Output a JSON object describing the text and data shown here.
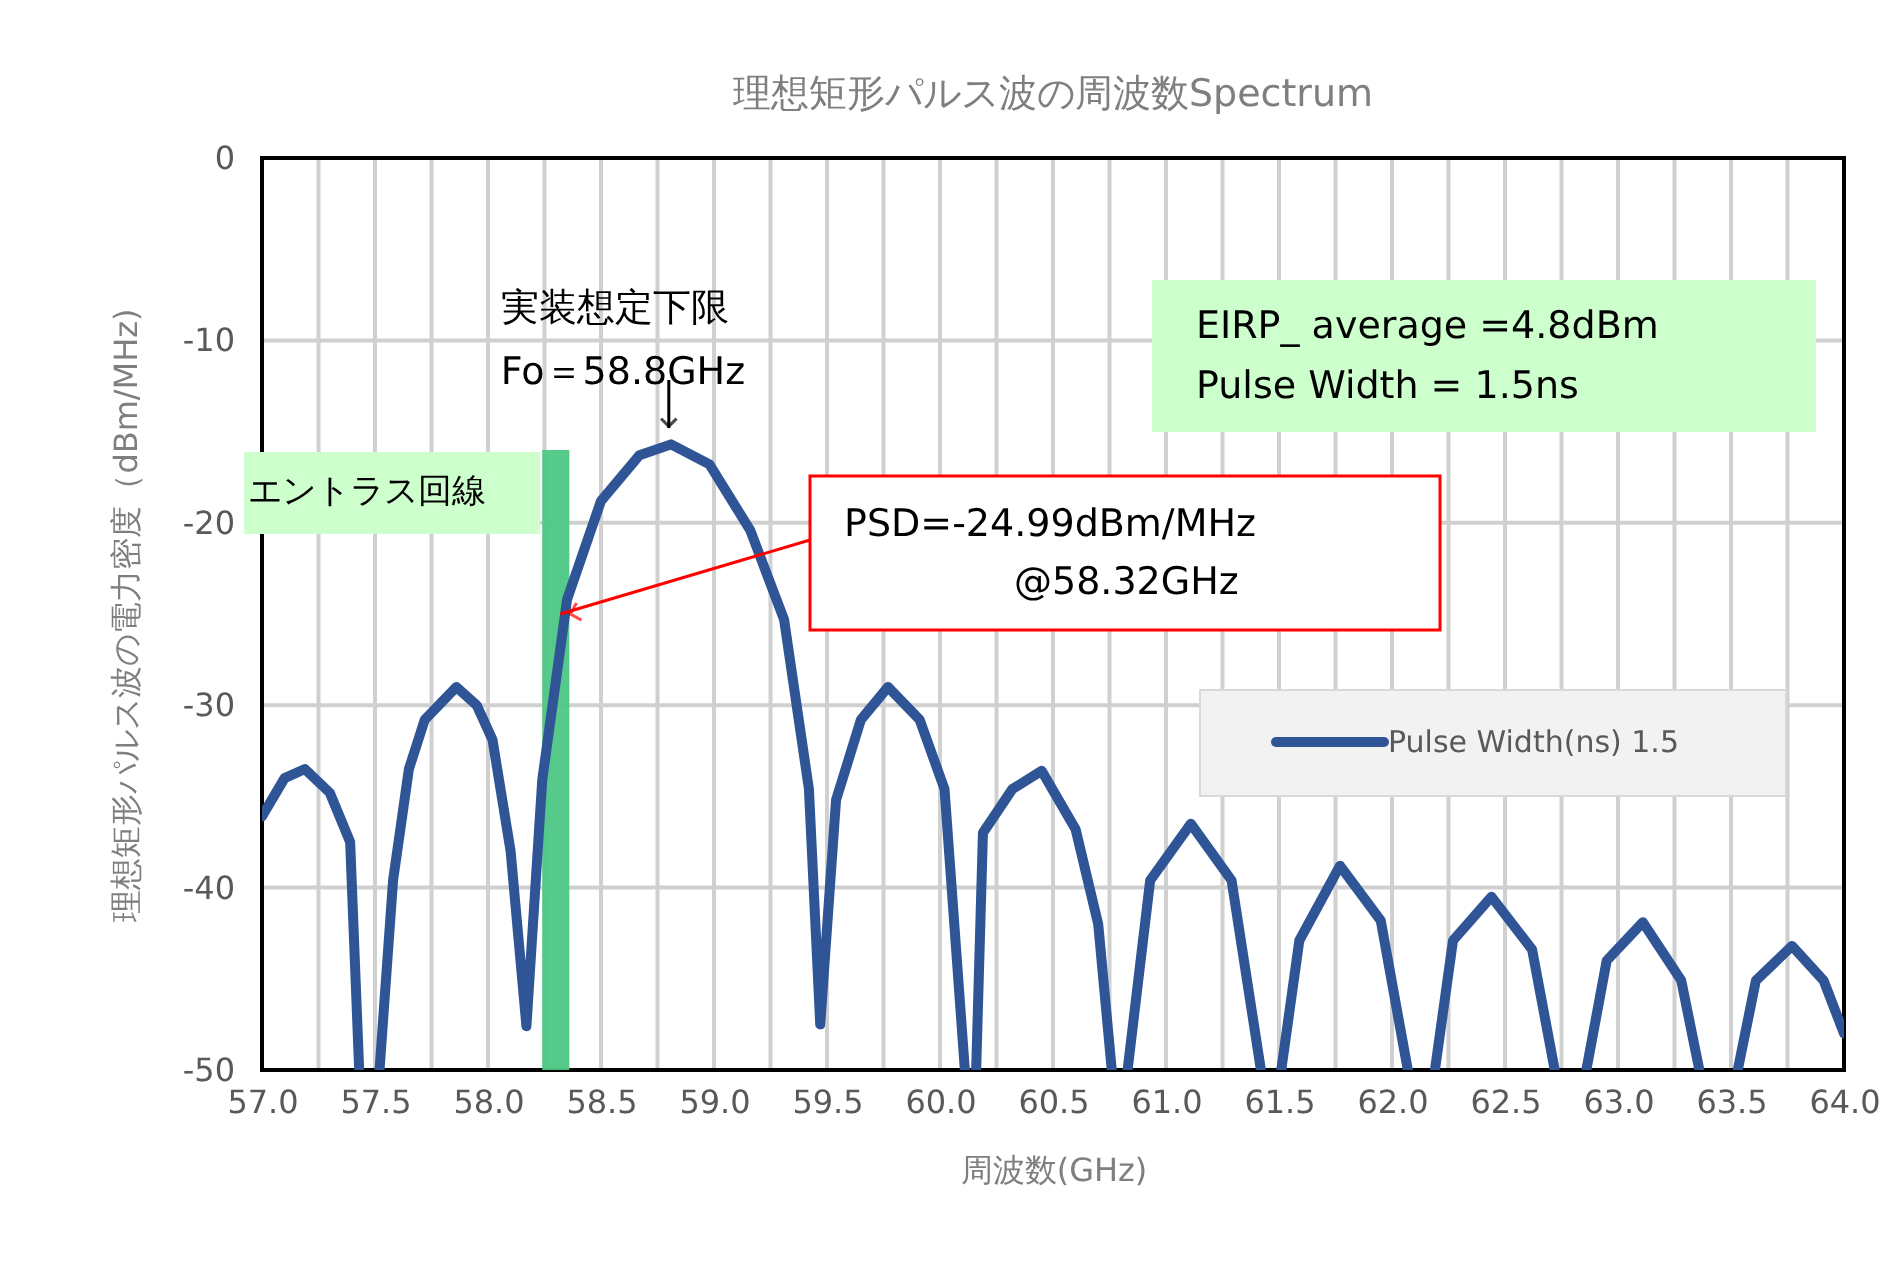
{
  "chart_data": {
    "type": "line",
    "title": "理想矩形パルス波の周波数Spectrum",
    "xlabel": "周波数(GHz)",
    "ylabel": "理想矩形パルス波の電力密度（dBm/MHz)",
    "series": [
      {
        "name": "Pulse Width(ns) 1.5",
        "color": "#2f5597",
        "x": [
          57.0,
          57.1,
          57.19,
          57.3,
          57.39,
          57.43,
          57.48,
          57.52,
          57.58,
          57.65,
          57.72,
          57.86,
          57.95,
          58.02,
          58.1,
          58.17,
          58.24,
          58.35,
          58.5,
          58.67,
          58.81,
          58.98,
          59.16,
          59.31,
          59.42,
          59.47,
          59.54,
          59.65,
          59.77,
          59.91,
          60.02,
          60.11,
          60.14,
          60.16,
          60.19,
          60.32,
          60.45,
          60.6,
          60.7,
          60.76,
          60.8,
          60.83,
          60.93,
          61.11,
          61.29,
          61.42,
          61.46,
          61.51,
          61.59,
          61.77,
          61.95,
          62.07,
          62.13,
          62.19,
          62.27,
          62.44,
          62.62,
          62.72,
          62.8,
          62.86,
          62.95,
          63.11,
          63.28,
          63.36,
          63.45,
          63.53,
          63.61,
          63.77,
          63.91,
          64.0
        ],
        "values": [
          -36.1,
          -34.0,
          -33.5,
          -34.8,
          -37.5,
          -50,
          null,
          -50,
          -39.6,
          -33.5,
          -30.8,
          -29.0,
          -30.0,
          -31.9,
          -38.0,
          -47.6,
          -34.1,
          -24.2,
          -18.8,
          -16.3,
          -15.7,
          -16.8,
          -20.4,
          -25.3,
          -34.6,
          -47.5,
          -35.2,
          -30.8,
          -29.0,
          -30.8,
          -34.6,
          -50,
          null,
          -50,
          -37.0,
          -34.6,
          -33.6,
          -36.8,
          -42.0,
          -50,
          null,
          -50,
          -39.6,
          -36.5,
          -39.6,
          -50,
          null,
          -50,
          -42.9,
          -38.8,
          -41.8,
          -50,
          null,
          -50,
          -42.9,
          -40.5,
          -43.4,
          -50,
          null,
          -50,
          -44.0,
          -41.9,
          -45.1,
          -50,
          null,
          -50,
          -45.1,
          -43.2,
          -45.1,
          -48.0
        ]
      }
    ],
    "xlim": [
      57,
      64
    ],
    "xticks": [
      {
        "value": 57,
        "label": "57.0"
      },
      {
        "value": 57.25,
        "label": null
      },
      {
        "value": 57.5,
        "label": "57.5"
      },
      {
        "value": 57.75,
        "label": null
      },
      {
        "value": 58,
        "label": "58.0"
      },
      {
        "value": 58.25,
        "label": null
      },
      {
        "value": 58.5,
        "label": "58.5"
      },
      {
        "value": 58.75,
        "label": null
      },
      {
        "value": 59,
        "label": "59.0"
      },
      {
        "value": 59.25,
        "label": null
      },
      {
        "value": 59.5,
        "label": "59.5"
      },
      {
        "value": 59.75,
        "label": null
      },
      {
        "value": 60,
        "label": "60.0"
      },
      {
        "value": 60.25,
        "label": null
      },
      {
        "value": 60.5,
        "label": "60.5"
      },
      {
        "value": 60.75,
        "label": null
      },
      {
        "value": 61,
        "label": "61.0"
      },
      {
        "value": 61.25,
        "label": null
      },
      {
        "value": 61.5,
        "label": "61.5"
      },
      {
        "value": 61.75,
        "label": null
      },
      {
        "value": 62,
        "label": "62.0"
      },
      {
        "value": 62.25,
        "label": null
      },
      {
        "value": 62.5,
        "label": "62.5"
      },
      {
        "value": 62.75,
        "label": null
      },
      {
        "value": 63,
        "label": "63.0"
      },
      {
        "value": 63.25,
        "label": null
      },
      {
        "value": 63.5,
        "label": "63.5"
      },
      {
        "value": 63.75,
        "label": null
      },
      {
        "value": 64,
        "label": "64.0"
      }
    ],
    "ylim": [
      -50,
      0
    ],
    "yticks": [
      -50,
      -40,
      -30,
      -20,
      -10,
      0
    ],
    "bands": [
      {
        "axis": "x",
        "from": 58.24,
        "to": 58.36,
        "label": "エントラス回線",
        "color": "#4cc784"
      }
    ],
    "annotations": [
      {
        "text": "実装想定下限\nFo＝58.8GHz",
        "x": 58.8,
        "y": -15.7
      },
      {
        "text": "PSD=-24.99dBm/MHz\n@58.32GHz",
        "x": 58.32,
        "y": -25
      },
      "EIRP_ average =4.8dBm\nPulse Width = 1.5ns"
    ],
    "grid": true,
    "legend": "right",
    "line_style": "solid",
    "marker": "none"
  }
}
